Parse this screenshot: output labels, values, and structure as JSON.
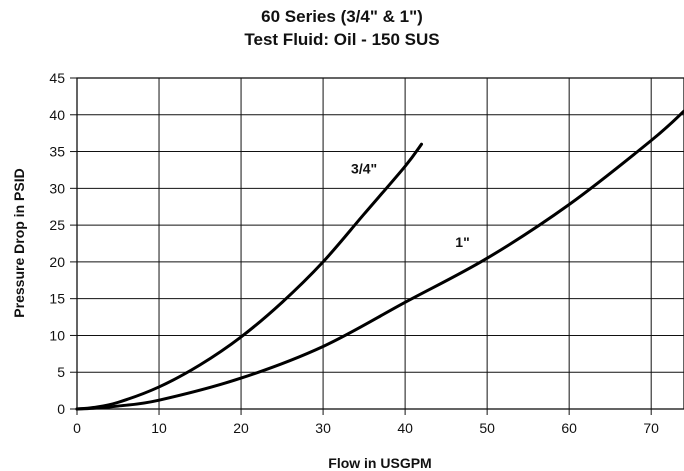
{
  "chart_data": {
    "type": "line",
    "title": "60 Series (3/4\" & 1\")",
    "subtitle": "Test Fluid: Oil - 150 SUS",
    "xlabel": "Flow in USGPM",
    "ylabel": "Pressure Drop in PSID",
    "xlim": [
      0,
      74
    ],
    "ylim": [
      0,
      45
    ],
    "x_ticks": [
      0,
      10,
      20,
      30,
      40,
      50,
      60,
      70
    ],
    "y_ticks": [
      0,
      5,
      10,
      15,
      20,
      25,
      30,
      35,
      40,
      45
    ],
    "grid": true,
    "series": [
      {
        "name": "3/4\"",
        "x": [
          0,
          2,
          5,
          10,
          15,
          20,
          25,
          30,
          35,
          40,
          42
        ],
        "y": [
          0,
          0.2,
          0.9,
          3.0,
          6.0,
          9.8,
          14.5,
          20.0,
          26.5,
          33.0,
          36.0
        ]
      },
      {
        "name": "1\"",
        "x": [
          0,
          2,
          5,
          10,
          20,
          30,
          40,
          50,
          60,
          70,
          74
        ],
        "y": [
          0,
          0.1,
          0.4,
          1.2,
          4.2,
          8.5,
          14.5,
          20.5,
          27.8,
          36.5,
          40.5
        ]
      }
    ],
    "annotations": [
      {
        "text": "3/4\"",
        "x": 35,
        "y": 32
      },
      {
        "text": "1\"",
        "x": 47,
        "y": 22
      }
    ]
  }
}
